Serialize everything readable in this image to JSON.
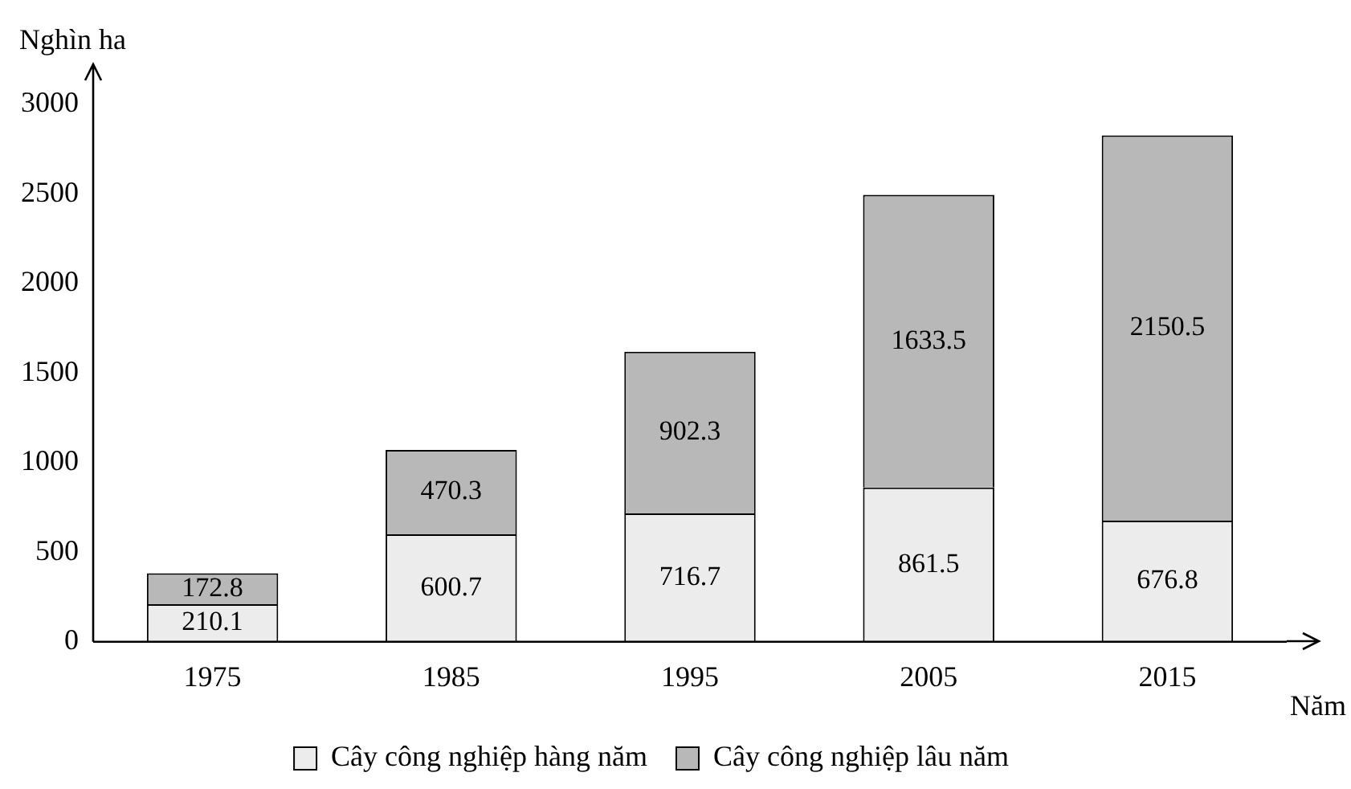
{
  "chart_data": {
    "type": "bar",
    "stacked": true,
    "ylabel": "Nghìn ha",
    "xlabel": "Năm",
    "categories": [
      "1975",
      "1985",
      "1995",
      "2005",
      "2015"
    ],
    "series": [
      {
        "name": "Cây công nghiệp hàng năm",
        "color": "#ececec",
        "values": [
          210.1,
          600.7,
          716.7,
          861.5,
          676.8
        ]
      },
      {
        "name": "Cây công nghiệp lâu năm",
        "color": "#b8b8b8",
        "values": [
          172.8,
          470.3,
          902.3,
          1633.5,
          2150.5
        ]
      }
    ],
    "ylim": [
      0,
      3000
    ],
    "yticks": [
      0,
      500,
      1000,
      1500,
      2000,
      2500,
      3000
    ],
    "grid": false,
    "legend": "bottom",
    "data_labels": true
  }
}
